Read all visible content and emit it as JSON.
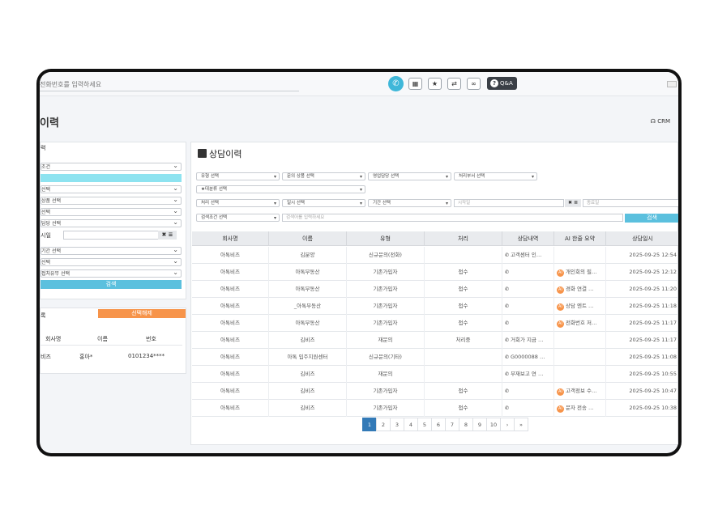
{
  "topbar": {
    "phone_placeholder": "전화번호를 입력하세요",
    "phone_icon": "phone-icon",
    "icons": [
      "keypad-icon",
      "star-icon",
      "transfer-icon",
      "voicemail-icon"
    ],
    "qa_label": "Q&A"
  },
  "page": {
    "title": "이력",
    "crm_label": "CRM"
  },
  "left_panel": {
    "header": "력",
    "selects": [
      "조건",
      "선택",
      "상품 선택",
      "선택",
      "담당 선택"
    ],
    "date_label": "시일",
    "date_clear": "✖ ≣",
    "selects2": [
      "기간 선택",
      "선택",
      "접처유무 선택"
    ],
    "search_label": "검색"
  },
  "left_panel2": {
    "label": "록",
    "unselect_label": "선택해제",
    "headers": [
      "회사명",
      "이름",
      "번호"
    ],
    "row": [
      "비즈",
      "홍아*",
      "0101234****"
    ]
  },
  "main": {
    "title": "상담이력",
    "filters_row1": [
      "유형 선택",
      "문의 상품 선택",
      "영업담당 선택",
      "처리부서 선택"
    ],
    "filter_category": "★대분류 선택",
    "filters_row3": [
      "처리 선택",
      "일시 선택",
      "기간 선택"
    ],
    "start_date_placeholder": "시작일",
    "end_date_placeholder": "종료일",
    "clear_label": "✖ ≣",
    "search_condition": "검색조건 선택",
    "search_placeholder": "검색어를 입력하세요",
    "search_label": "검색"
  },
  "table": {
    "headers": [
      "회사명",
      "이름",
      "유형",
      "처리",
      "상담내역",
      "AI 한줄 요약",
      "상담일시"
    ],
    "rows": [
      {
        "company": "아톡비즈",
        "name": "김분양",
        "type": "신규문의(전화)",
        "status": "",
        "detail": "고객센터 인…",
        "ai": "",
        "date": "2025-09-25 12:54"
      },
      {
        "company": "아톡비즈",
        "name": "아톡부동산",
        "type": "기존가입자",
        "status": "접수",
        "detail": "",
        "ai": "개인회의 필…",
        "date": "2025-09-25 12:12"
      },
      {
        "company": "아톡비즈",
        "name": "아톡부동산",
        "type": "기존가입자",
        "status": "접수",
        "detail": "",
        "ai": "경화 연결 …",
        "date": "2025-09-25 11:20"
      },
      {
        "company": "아톡비즈",
        "name": "_아톡부동산",
        "type": "기존가입자",
        "status": "접수",
        "detail": "",
        "ai": "상담 엔트 …",
        "date": "2025-09-25 11:18"
      },
      {
        "company": "아톡비즈",
        "name": "아톡부동산",
        "type": "기존가입자",
        "status": "접수",
        "detail": "",
        "ai": "전화번호 저…",
        "date": "2025-09-25 11:17"
      },
      {
        "company": "아톡비즈",
        "name": "김비즈",
        "type": "재문의",
        "status": "처리중",
        "detail": "거회가 지금 …",
        "ai": "",
        "date": "2025-09-25 11:17"
      },
      {
        "company": "아톡비즈",
        "name": "아톡 입주지원센터",
        "type": "신규문의(기타)",
        "status": "",
        "detail": "G0000088 …",
        "ai": "",
        "date": "2025-09-25 11:08"
      },
      {
        "company": "아톡비즈",
        "name": "김비즈",
        "type": "재문의",
        "status": "",
        "detail": "부재보고 연 …",
        "ai": "",
        "date": "2025-09-25 10:55"
      },
      {
        "company": "아톡비즈",
        "name": "김비즈",
        "type": "기존가입자",
        "status": "접수",
        "detail": "",
        "ai": "고객정보 수…",
        "date": "2025-09-25 10:47"
      },
      {
        "company": "아톡비즈",
        "name": "김비즈",
        "type": "기존가입자",
        "status": "접수",
        "detail": "",
        "ai": "문자 전송 …",
        "date": "2025-09-25 10:38"
      }
    ]
  },
  "pagination": {
    "pages": [
      "1",
      "2",
      "3",
      "4",
      "5",
      "6",
      "7",
      "8",
      "9",
      "10"
    ],
    "next": "›",
    "last": "»",
    "current": "1"
  },
  "colors": {
    "accent_cyan": "#5bc0de",
    "accent_orange": "#f7944a",
    "pager_active": "#337ab7"
  }
}
